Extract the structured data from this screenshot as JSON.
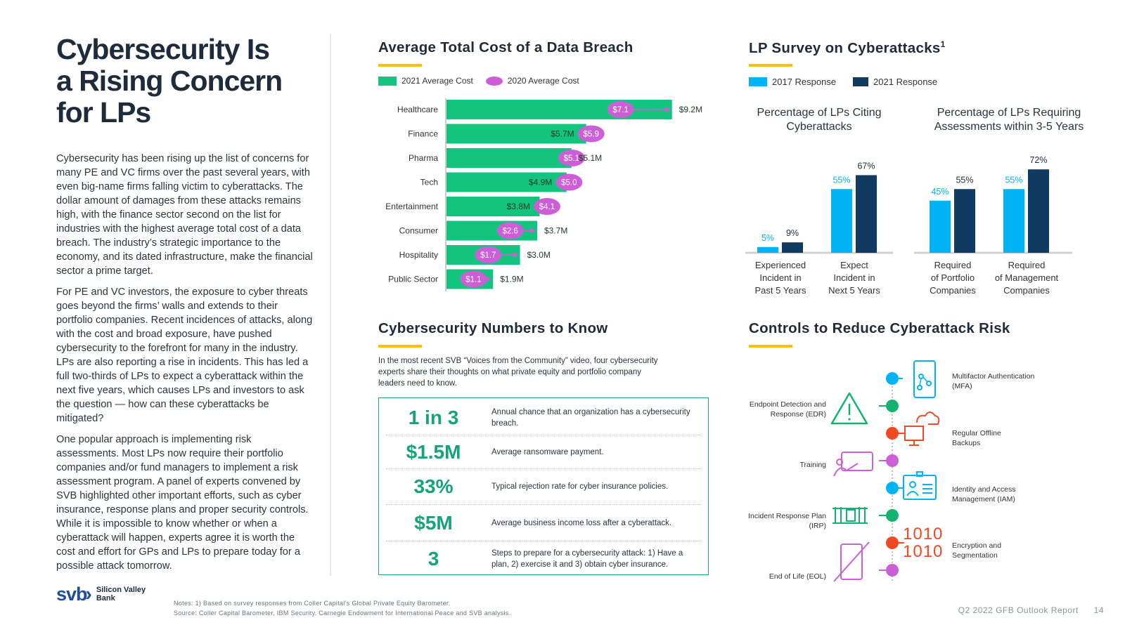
{
  "left": {
    "title_lines": [
      "Cybersecurity Is",
      "a Rising Concern",
      "for LPs"
    ],
    "paragraphs": [
      "Cybersecurity has been rising up the list of concerns for many PE and VC firms over the past several years, with even big-name firms falling victim to cyberattacks. The dollar amount of damages from these attacks remains high, with the finance sector second on the list for industries with the highest average total cost of a data breach. The industry’s strategic importance to the economy, and its dated infrastructure, make the financial sector a prime target.",
      "For PE and VC investors, the exposure to cyber threats goes beyond the firms’ walls and extends to their portfolio companies. Recent incidences of attacks, along with the cost and broad exposure, have pushed cybersecurity to the forefront for many in the industry. LPs are also reporting a rise in incidents. This has led a full two-thirds of LPs to expect a cyberattack within the next five years, which causes LPs and investors to ask the question — how can these cyberattacks be mitigated?",
      "One popular approach is implementing risk assessments. Most LPs now require their portfolio companies and/or fund managers to implement a risk assessment program. A panel of experts convened by SVB highlighted other important efforts, such as cyber insurance, response plans and proper security controls. While it is impossible to know whether or when a cyberattack will happen, experts agree it is worth the cost and effort for GPs and LPs to prepare today for a possible attack tomorrow."
    ]
  },
  "breach": {
    "title": "Average Total Cost of a Data Breach",
    "legend_2021": "2021 Average Cost",
    "legend_2020": "2020 Average Cost"
  },
  "survey": {
    "title": "LP Survey on Cyberattacks",
    "title_sup": "1",
    "legend_2017": "2017 Response",
    "legend_2021": "2021 Response",
    "chart1_title": "Percentage of LPs Citing Cyberattacks",
    "chart2_title": "Percentage of LPs Requiring Assessments within 3-5 Years"
  },
  "numbers": {
    "title": "Cybersecurity Numbers to Know",
    "intro": "In the most recent SVB “Voices from the Community” video, four cybersecurity experts share their thoughts on what private equity and portfolio company leaders need to know.",
    "rows": [
      {
        "big": "1 in 3",
        "desc": "Annual chance that an organization has a cybersecurity breach."
      },
      {
        "big": "$1.5M",
        "desc": "Average ransomware payment."
      },
      {
        "big": "33%",
        "desc": "Typical rejection rate for cyber insurance policies."
      },
      {
        "big": "$5M",
        "desc": "Average business income loss after a cyberattack."
      },
      {
        "big": "3",
        "desc": "Steps to prepare for a cybersecurity attack: 1) Have a plan, 2) exercise it and 3) obtain cyber insurance."
      }
    ]
  },
  "controls": {
    "title": "Controls to Reduce Cyberattack Risk",
    "left_items": [
      {
        "label": "Endpoint Detection and Response (EDR)"
      },
      {
        "label": "Training"
      },
      {
        "label": "Incident Response Plan (IRP)"
      },
      {
        "label": "End of Life (EOL)"
      }
    ],
    "right_items": [
      {
        "label": "Multifactor Authentication (MFA)"
      },
      {
        "label": "Regular Offline Backups"
      },
      {
        "label": "Identity and Access Management (IAM)"
      },
      {
        "label": "Encryption and Segmentation"
      }
    ],
    "binary_text": [
      "1010",
      "1010"
    ]
  },
  "footer": {
    "note": "Notes: 1) Based on survey responses from Coller Capital’s Global Private Equity Barometer.",
    "source": "Source: Coller Capital Barometer, IBM Security, Carnegie Endowment for International Peace and SVB analysis.",
    "report": "Q2 2022 GFB Outlook Report",
    "page": "14",
    "logo_svb": "svb",
    "logo_name_1": "Silicon Valley",
    "logo_name_2": "Bank"
  },
  "colors": {
    "green": "#12c47e",
    "purple": "#cd5fd6",
    "light_blue": "#00b3f5",
    "navy": "#0f3a62",
    "yellow": "#ffc000",
    "ctrl_green": "#13b36f",
    "ctrl_orange": "#f04a23"
  },
  "chart_data": [
    {
      "type": "bar",
      "orientation": "horizontal",
      "title": "Average Total Cost of a Data Breach",
      "categories": [
        "Healthcare",
        "Finance",
        "Pharma",
        "Tech",
        "Entertainment",
        "Consumer",
        "Hospitality",
        "Public Sector"
      ],
      "series": [
        {
          "name": "2021 Average Cost",
          "values": [
            9.2,
            5.7,
            5.1,
            4.9,
            3.8,
            3.7,
            3.0,
            1.9
          ],
          "labels": [
            "$9.2M",
            "$5.7M",
            "$5.1M",
            "$4.9M",
            "$3.8M",
            "$3.7M",
            "$3.0M",
            "$1.9M"
          ]
        },
        {
          "name": "2020 Average Cost",
          "values": [
            7.1,
            5.9,
            5.1,
            5.0,
            4.1,
            2.6,
            1.7,
            1.1
          ],
          "labels": [
            "$7.1",
            "$5.9",
            "$5.1",
            "$5.0",
            "$4.1",
            "$2.6",
            "$1.7",
            "$1.1"
          ]
        }
      ],
      "xlim": [
        0,
        9.5
      ]
    },
    {
      "type": "bar",
      "title": "Percentage of LPs Citing Cyberattacks",
      "categories": [
        "Experienced Incident in Past 5 Years",
        "Expect Incident in Next 5 Years"
      ],
      "series": [
        {
          "name": "2017 Response",
          "values": [
            5,
            55
          ],
          "labels": [
            "5%",
            "55%"
          ]
        },
        {
          "name": "2021 Response",
          "values": [
            9,
            67
          ],
          "labels": [
            "9%",
            "67%"
          ]
        }
      ],
      "ylim": [
        0,
        100
      ]
    },
    {
      "type": "bar",
      "title": "Percentage of LPs Requiring Assessments within 3-5 Years",
      "categories": [
        "Required of Portfolio Companies",
        "Required of Management Companies"
      ],
      "series": [
        {
          "name": "2017 Response",
          "values": [
            45,
            55
          ],
          "labels": [
            "45%",
            "55%"
          ]
        },
        {
          "name": "2021 Response",
          "values": [
            55,
            72
          ],
          "labels": [
            "55%",
            "72%"
          ]
        }
      ],
      "ylim": [
        0,
        100
      ]
    }
  ]
}
